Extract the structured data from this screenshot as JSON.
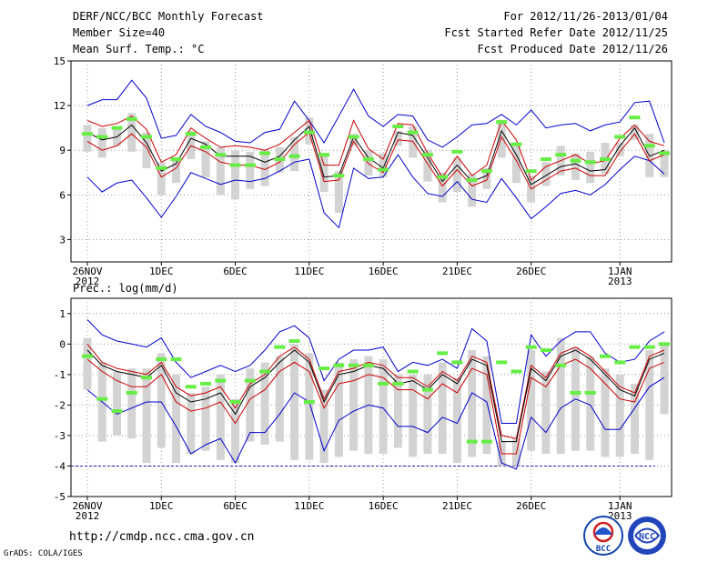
{
  "header": {
    "title": "DERF/NCC/BCC Monthly Forecast",
    "member_size": "Member Size=40",
    "variable": "Mean Surf. Temp.: °C",
    "period": "For 2012/11/26-2013/01/04",
    "started": "Fcst Started Refer Date 2012/11/25",
    "produced": "Fcst Produced Date 2012/11/26"
  },
  "footer": {
    "url": "http://cmdp.ncc.cma.gov.cn",
    "credit": "GrADS: COLA/IGES"
  },
  "logos": {
    "bcc": "BCC",
    "ncc": "NCC"
  },
  "colors": {
    "max": "#0000cc",
    "spread": "#cc0000",
    "mean": "#000000",
    "marker": "#66ee44",
    "bar": "#d3d3d3",
    "baseline": "#2222aa"
  },
  "chart_data": [
    {
      "type": "line",
      "title": "Mean Surf. Temp.: °C",
      "xlabel": "",
      "ylabel": "",
      "ylim": [
        1.5,
        15
      ],
      "yticks": [
        3,
        6,
        9,
        12,
        15
      ],
      "x_tick_labels": [
        "26NOV",
        "1DEC",
        "6DEC",
        "11DEC",
        "16DEC",
        "21DEC",
        "26DEC",
        "1JAN"
      ],
      "x_tick_index": [
        0,
        5,
        10,
        15,
        20,
        25,
        30,
        36
      ],
      "x_tick_year": {
        "0": "2012",
        "36": "2013"
      },
      "days": 40,
      "series": [
        {
          "name": "max",
          "values": [
            12.0,
            12.4,
            12.4,
            13.7,
            12.5,
            9.8,
            10.0,
            11.4,
            10.6,
            10.2,
            9.6,
            9.5,
            10.2,
            10.4,
            12.3,
            11.0,
            9.5,
            11.3,
            13.1,
            11.3,
            10.6,
            11.4,
            11.3,
            9.7,
            9.2,
            9.9,
            10.7,
            10.8,
            11.4,
            10.7,
            11.7,
            10.5,
            10.7,
            10.8,
            10.3,
            10.7,
            10.9,
            12.2,
            12.3,
            9.5
          ]
        },
        {
          "name": "spread_upper",
          "values": [
            11.0,
            10.6,
            10.8,
            11.3,
            10.4,
            8.2,
            8.7,
            10.5,
            9.8,
            9.2,
            9.3,
            9.2,
            9.0,
            9.4,
            10.2,
            11.0,
            8.0,
            8.0,
            11.0,
            9.1,
            8.4,
            10.8,
            10.7,
            8.8,
            7.2,
            8.6,
            7.3,
            8.0,
            11.0,
            9.7,
            7.0,
            7.9,
            8.3,
            8.7,
            8.1,
            8.3,
            9.8,
            10.7,
            9.6,
            9.3
          ]
        },
        {
          "name": "mean",
          "values": [
            10.2,
            9.7,
            9.9,
            10.7,
            9.5,
            7.6,
            8.1,
            9.8,
            9.4,
            8.6,
            8.6,
            8.6,
            8.2,
            8.6,
            9.7,
            10.6,
            7.2,
            7.3,
            9.9,
            8.5,
            7.8,
            10.2,
            10.0,
            8.5,
            6.9,
            8.0,
            6.9,
            7.3,
            10.3,
            8.7,
            6.7,
            7.3,
            7.9,
            8.1,
            7.6,
            7.7,
            9.3,
            10.5,
            8.6,
            9.0
          ]
        },
        {
          "name": "spread_lower",
          "values": [
            9.6,
            9.0,
            9.3,
            10.1,
            9.2,
            7.2,
            7.8,
            9.3,
            8.9,
            8.2,
            8.0,
            8.0,
            7.7,
            8.2,
            9.4,
            10.2,
            6.9,
            7.0,
            9.6,
            8.1,
            7.5,
            9.7,
            9.6,
            8.1,
            6.6,
            7.7,
            6.6,
            7.0,
            9.9,
            8.3,
            6.4,
            7.0,
            7.6,
            7.8,
            7.3,
            7.3,
            8.9,
            10.1,
            8.3,
            8.7
          ]
        },
        {
          "name": "min",
          "values": [
            7.2,
            6.2,
            6.8,
            7.0,
            5.8,
            4.5,
            5.9,
            7.5,
            7.1,
            6.7,
            7.0,
            6.9,
            7.1,
            7.6,
            8.2,
            8.4,
            4.8,
            3.8,
            7.8,
            7.1,
            7.2,
            8.7,
            7.2,
            6.1,
            5.9,
            6.9,
            5.7,
            5.5,
            7.1,
            5.8,
            4.4,
            5.2,
            6.1,
            6.3,
            6.0,
            6.7,
            7.7,
            8.6,
            8.3,
            7.4
          ]
        },
        {
          "name": "observed_marker",
          "values": [
            10.1,
            9.9,
            10.5,
            11.1,
            9.9,
            7.8,
            8.4,
            10.1,
            9.2,
            8.7,
            8.0,
            8.0,
            8.8,
            8.4,
            8.6,
            10.2,
            8.7,
            7.3,
            9.9,
            8.4,
            7.7,
            10.6,
            10.2,
            8.7,
            7.2,
            8.9,
            7.0,
            7.6,
            10.9,
            9.4,
            7.6,
            8.4,
            8.7,
            8.3,
            8.2,
            8.4,
            9.9,
            11.2,
            9.3,
            8.8
          ]
        },
        {
          "name": "bar_top",
          "values": [
            10.7,
            10.5,
            10.6,
            11.5,
            10.2,
            8.2,
            8.5,
            10.3,
            9.6,
            9.2,
            9.0,
            8.9,
            9.0,
            9.2,
            9.9,
            11.2,
            8.8,
            7.6,
            10.1,
            9.0,
            8.8,
            10.3,
            10.6,
            9.0,
            7.5,
            8.5,
            7.4,
            7.8,
            10.9,
            9.3,
            7.3,
            8.2,
            9.3,
            8.8,
            8.9,
            9.5,
            9.5,
            10.7,
            10.1,
            9.0
          ]
        },
        {
          "name": "bar_bottom",
          "values": [
            8.9,
            8.5,
            9.3,
            8.9,
            7.8,
            6.0,
            6.8,
            8.4,
            7.2,
            6.0,
            5.7,
            6.4,
            6.6,
            7.5,
            7.6,
            9.4,
            6.2,
            4.8,
            9.3,
            7.3,
            7.2,
            9.3,
            8.5,
            6.9,
            5.5,
            6.2,
            5.2,
            6.4,
            8.5,
            6.8,
            5.5,
            6.6,
            7.3,
            7.0,
            6.8,
            7.4,
            8.6,
            9.7,
            7.2,
            7.2
          ]
        }
      ]
    },
    {
      "type": "line",
      "title": "Prec.: log(mm/d)",
      "xlabel": "",
      "ylabel": "",
      "ylim": [
        -5,
        1.5
      ],
      "yticks": [
        -5,
        -4,
        -3,
        -2,
        -1,
        0,
        1
      ],
      "x_tick_labels": [
        "26NOV",
        "1DEC",
        "6DEC",
        "11DEC",
        "16DEC",
        "21DEC",
        "26DEC",
        "1JAN"
      ],
      "x_tick_index": [
        0,
        5,
        10,
        15,
        20,
        25,
        30,
        36
      ],
      "x_tick_year": {
        "0": "2012",
        "36": "2013"
      },
      "baseline": -4,
      "days": 40,
      "series": [
        {
          "name": "max",
          "values": [
            0.8,
            0.3,
            0.1,
            0.0,
            -0.1,
            0.2,
            -0.6,
            -1.1,
            -0.9,
            -0.7,
            -0.9,
            -0.7,
            -0.2,
            0.4,
            0.6,
            0.2,
            -1.2,
            -0.5,
            -0.2,
            -0.2,
            -0.1,
            -0.9,
            -0.6,
            -0.7,
            -0.5,
            -0.8,
            0.5,
            0.1,
            -2.6,
            -2.6,
            0.3,
            -0.4,
            0.1,
            0.4,
            0.4,
            -0.3,
            -0.6,
            -0.5,
            0.1,
            0.4
          ]
        },
        {
          "name": "spread_upper",
          "values": [
            0.0,
            -0.6,
            -0.8,
            -0.9,
            -1.0,
            -0.6,
            -1.4,
            -1.7,
            -1.6,
            -1.4,
            -2.1,
            -1.3,
            -1.0,
            -0.4,
            -0.1,
            -0.5,
            -1.8,
            -0.9,
            -0.8,
            -0.6,
            -0.7,
            -1.1,
            -1.1,
            -1.4,
            -0.9,
            -1.2,
            -0.4,
            -0.6,
            -3.0,
            -3.1,
            -0.7,
            -1.1,
            -0.3,
            -0.1,
            -0.4,
            -0.9,
            -1.4,
            -1.6,
            -0.4,
            -0.2
          ]
        },
        {
          "name": "mean",
          "values": [
            -0.2,
            -0.7,
            -0.9,
            -1.0,
            -1.1,
            -0.7,
            -1.6,
            -1.9,
            -1.8,
            -1.6,
            -2.3,
            -1.4,
            -1.1,
            -0.6,
            -0.2,
            -0.6,
            -1.9,
            -1.0,
            -0.9,
            -0.7,
            -0.8,
            -1.3,
            -1.2,
            -1.5,
            -1.0,
            -1.3,
            -0.5,
            -0.7,
            -3.2,
            -3.2,
            -0.8,
            -1.2,
            -0.4,
            -0.2,
            -0.5,
            -1.0,
            -1.5,
            -1.7,
            -0.5,
            -0.3
          ]
        },
        {
          "name": "spread_lower",
          "values": [
            -0.5,
            -0.9,
            -1.2,
            -1.4,
            -1.4,
            -1.0,
            -1.9,
            -2.2,
            -2.1,
            -1.9,
            -2.6,
            -1.8,
            -1.5,
            -0.9,
            -0.6,
            -0.9,
            -2.1,
            -1.3,
            -1.2,
            -1.0,
            -1.1,
            -1.5,
            -1.5,
            -1.8,
            -1.3,
            -1.6,
            -0.8,
            -1.0,
            -3.6,
            -3.6,
            -1.1,
            -1.4,
            -0.7,
            -0.5,
            -0.8,
            -1.3,
            -1.8,
            -1.9,
            -0.8,
            -0.6
          ]
        },
        {
          "name": "min",
          "values": [
            -1.5,
            -1.9,
            -2.3,
            -2.1,
            -1.9,
            -1.9,
            -2.7,
            -3.6,
            -3.3,
            -3.1,
            -3.9,
            -2.9,
            -2.9,
            -2.3,
            -1.6,
            -1.9,
            -3.5,
            -2.5,
            -2.2,
            -2.0,
            -2.1,
            -2.7,
            -2.7,
            -2.9,
            -2.4,
            -2.6,
            -1.6,
            -1.9,
            -3.9,
            -4.1,
            -2.4,
            -2.9,
            -2.1,
            -1.8,
            -2.0,
            -2.8,
            -2.8,
            -2.1,
            -1.4,
            -1.1
          ]
        },
        {
          "name": "observed_marker",
          "values": [
            -0.4,
            -1.8,
            -2.2,
            -1.6,
            -1.1,
            -0.5,
            -0.5,
            -1.4,
            -1.3,
            -1.2,
            -1.9,
            -1.2,
            -0.9,
            -0.1,
            0.1,
            -1.9,
            -0.8,
            -0.7,
            -0.7,
            -0.7,
            -1.3,
            -1.3,
            -0.9,
            -1.5,
            -0.3,
            -0.6,
            -3.2,
            -3.2,
            -0.6,
            -0.9,
            -0.1,
            -0.2,
            -0.7,
            -1.6,
            -1.6,
            -0.4,
            -0.6,
            -0.1,
            -0.1,
            0.0
          ]
        },
        {
          "name": "bar_top",
          "values": [
            0.2,
            -0.6,
            -0.9,
            -0.8,
            -0.8,
            -0.3,
            -1.0,
            -1.6,
            -1.4,
            -1.0,
            -1.8,
            -0.8,
            -0.6,
            -0.4,
            0.0,
            -0.3,
            -1.5,
            -0.6,
            -0.5,
            -0.4,
            -0.5,
            -1.0,
            -1.0,
            -1.0,
            -0.6,
            -1.1,
            -0.2,
            -0.4,
            -3.2,
            -3.1,
            -0.2,
            -0.9,
            0.2,
            -0.1,
            -0.4,
            -0.8,
            -1.0,
            -1.3,
            -0.2,
            0.0
          ]
        },
        {
          "name": "bar_bottom",
          "values": [
            -1.5,
            -3.2,
            -3.0,
            -3.1,
            -3.9,
            -3.4,
            -3.9,
            -3.6,
            -3.5,
            -3.8,
            -3.9,
            -3.2,
            -3.3,
            -3.2,
            -3.8,
            -3.8,
            -3.9,
            -3.7,
            -3.5,
            -3.6,
            -3.6,
            -3.4,
            -3.7,
            -3.6,
            -3.6,
            -3.9,
            -3.7,
            -3.6,
            -4.0,
            -4.0,
            -3.5,
            -3.6,
            -3.6,
            -3.5,
            -3.5,
            -3.7,
            -3.7,
            -3.6,
            -3.8,
            -2.3
          ]
        }
      ]
    }
  ]
}
